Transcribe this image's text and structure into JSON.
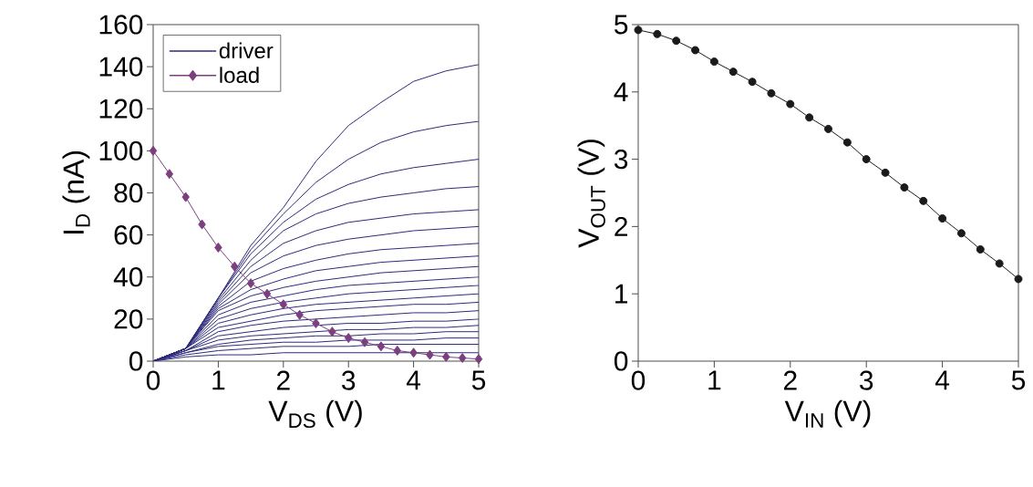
{
  "chart_data": [
    {
      "type": "line",
      "xlabel": "V$_{DS}$ (V)",
      "ylabel": "I$_{D}$ (nA)",
      "xlim": [
        0,
        5
      ],
      "xticks": [
        0,
        1,
        2,
        3,
        4,
        5
      ],
      "ylim": [
        0,
        160
      ],
      "yticks": [
        0,
        20,
        40,
        60,
        80,
        100,
        120,
        140,
        160
      ],
      "legend": "top left",
      "marker": "none",
      "grid": false,
      "x": [
        0,
        0.5,
        1,
        1.5,
        2,
        2.5,
        3,
        3.5,
        4,
        4.5,
        5
      ],
      "series": [
        {
          "name": "driver",
          "color": "#2e2a7a",
          "values": [
            0,
            6,
            30,
            55,
            73,
            95,
            112,
            123,
            133,
            138,
            141
          ]
        },
        {
          "color": "#2e2a7a",
          "values": [
            0,
            6,
            30,
            53,
            70,
            85,
            96,
            104,
            109,
            112,
            114
          ]
        },
        {
          "color": "#2e2a7a",
          "values": [
            0,
            6,
            30,
            51,
            66,
            77,
            84,
            89,
            92,
            94,
            96
          ]
        },
        {
          "color": "#2e2a7a",
          "values": [
            0,
            6,
            29,
            48,
            62,
            70,
            75,
            78,
            80,
            82,
            83
          ]
        },
        {
          "color": "#2e2a7a",
          "values": [
            0,
            6,
            28,
            45,
            56,
            62,
            66,
            68,
            70,
            71,
            72
          ]
        },
        {
          "color": "#2e2a7a",
          "values": [
            0,
            6,
            27,
            42,
            50,
            55,
            58,
            60,
            62,
            63,
            64
          ]
        },
        {
          "color": "#2e2a7a",
          "values": [
            0,
            6,
            26,
            38,
            44,
            48,
            51,
            53,
            54,
            55,
            56
          ]
        },
        {
          "color": "#2e2a7a",
          "values": [
            0,
            6,
            25,
            34,
            39,
            43,
            45,
            47,
            48,
            49,
            50
          ]
        },
        {
          "color": "#2e2a7a",
          "values": [
            0,
            6,
            24,
            31,
            35,
            38,
            40,
            42,
            43,
            44,
            45
          ]
        },
        {
          "color": "#2e2a7a",
          "values": [
            0,
            6,
            22,
            28,
            31,
            34,
            36,
            37,
            38,
            39,
            40
          ]
        },
        {
          "color": "#2e2a7a",
          "values": [
            0,
            6,
            20,
            25,
            28,
            30,
            32,
            33,
            34,
            35,
            36
          ]
        },
        {
          "color": "#2e2a7a",
          "values": [
            0,
            6,
            18,
            22,
            25,
            27,
            28,
            29,
            30,
            31,
            32
          ]
        },
        {
          "color": "#2e2a7a",
          "values": [
            0,
            6,
            16,
            19,
            22,
            24,
            25,
            26,
            27,
            27,
            28
          ]
        },
        {
          "color": "#2e2a7a",
          "values": [
            0,
            5,
            14,
            17,
            19,
            20,
            21,
            22,
            23,
            23,
            24
          ]
        },
        {
          "color": "#2e2a7a",
          "values": [
            0,
            5,
            12,
            14,
            16,
            17,
            18,
            18,
            19,
            19,
            20
          ]
        },
        {
          "color": "#2e2a7a",
          "values": [
            0,
            5,
            10,
            12,
            13,
            14,
            15,
            15,
            16,
            16,
            17
          ]
        },
        {
          "color": "#2e2a7a",
          "values": [
            0,
            4,
            8,
            10,
            11,
            12,
            12,
            13,
            13,
            14,
            14
          ]
        },
        {
          "color": "#2e2a7a",
          "values": [
            0,
            4,
            7,
            8,
            9,
            9,
            10,
            10,
            10,
            11,
            11
          ]
        },
        {
          "color": "#2e2a7a",
          "values": [
            0,
            3,
            5,
            6,
            7,
            7,
            7,
            8,
            8,
            8,
            8
          ]
        },
        {
          "color": "#2e2a7a",
          "values": [
            0,
            2,
            3,
            3,
            4,
            4,
            4,
            4,
            4,
            4,
            4
          ]
        },
        {
          "name": "load",
          "color": "#7b3f7f",
          "marker": "diamond",
          "x": [
            0,
            0.25,
            0.5,
            0.75,
            1,
            1.25,
            1.5,
            1.75,
            2,
            2.25,
            2.5,
            2.75,
            3,
            3.25,
            3.5,
            3.75,
            4,
            4.25,
            4.5,
            4.75,
            5
          ],
          "values": [
            100,
            89,
            78,
            65,
            54,
            45,
            37,
            32,
            27,
            22,
            18,
            14,
            11,
            9,
            7,
            5,
            4,
            3,
            2,
            1.5,
            1
          ]
        }
      ]
    },
    {
      "type": "line",
      "xlabel": "V$_{IN}$ (V)",
      "ylabel": "V$_{OUT}$ (V)",
      "xlim": [
        0,
        5
      ],
      "xticks": [
        0,
        1,
        2,
        3,
        4,
        5
      ],
      "ylim": [
        0,
        5
      ],
      "yticks": [
        0,
        1,
        2,
        3,
        4,
        5
      ],
      "legend": false,
      "marker": "circle",
      "grid": false,
      "x": [
        0,
        0.25,
        0.5,
        0.75,
        1,
        1.25,
        1.5,
        1.75,
        2,
        2.25,
        2.5,
        2.75,
        3,
        3.25,
        3.5,
        3.75,
        4,
        4.25,
        4.5,
        4.75,
        5
      ],
      "series": [
        {
          "color": "#1a1a1a",
          "values": [
            4.92,
            4.86,
            4.76,
            4.62,
            4.45,
            4.3,
            4.15,
            3.98,
            3.82,
            3.62,
            3.45,
            3.25,
            3.0,
            2.8,
            2.58,
            2.38,
            2.12,
            1.9,
            1.66,
            1.45,
            1.22
          ]
        }
      ]
    }
  ]
}
